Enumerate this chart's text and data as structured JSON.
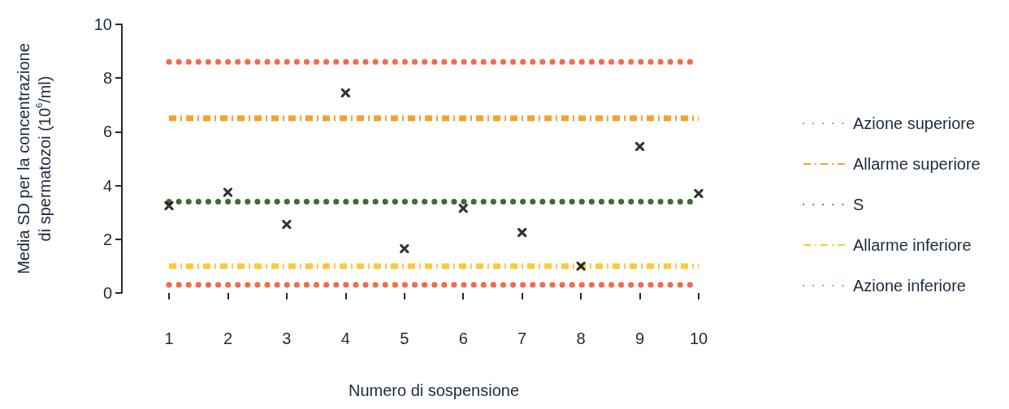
{
  "chart_data": {
    "type": "scatter",
    "xlabel": "Numero di sospensione",
    "ylabel": "Media SD per la concentrazione\ndi spermatozoi (10$^{6}$/ml)",
    "xlim": [
      1,
      10
    ],
    "xticks": [
      1,
      2,
      3,
      4,
      5,
      6,
      7,
      8,
      9,
      10
    ],
    "ylim": [
      0,
      10
    ],
    "yticks": [
      0,
      2,
      4,
      6,
      8,
      10
    ],
    "grid": false,
    "legend": "right",
    "series": [
      {
        "type": "line",
        "name": "Azione superiore",
        "color": "#f26a4f",
        "line_style": "dotted",
        "x": [
          1,
          10
        ],
        "values": [
          8.6,
          8.6
        ]
      },
      {
        "type": "line",
        "name": "Allarme superiore",
        "color": "#f7a030",
        "line_style": "dashed",
        "x": [
          1,
          10
        ],
        "values": [
          6.5,
          6.5
        ]
      },
      {
        "type": "line",
        "name": "S",
        "color": "#3f6b35",
        "line_style": "dotted",
        "x": [
          1,
          10
        ],
        "values": [
          3.4,
          3.4
        ]
      },
      {
        "type": "line",
        "name": "Allarme inferiore",
        "color": "#fdc93a",
        "line_style": "dashed",
        "x": [
          1,
          10
        ],
        "values": [
          1.0,
          1.0
        ]
      },
      {
        "type": "line",
        "name": "Azione inferiore",
        "color": "#f26a4f",
        "line_style": "dotted",
        "x": [
          1,
          10
        ],
        "values": [
          0.3,
          0.3
        ]
      },
      {
        "marker": "cross",
        "color": "#000000",
        "x": [
          1,
          2,
          3,
          4,
          5,
          6,
          7,
          8,
          9,
          10
        ],
        "values": [
          3.25,
          3.75,
          2.55,
          7.45,
          1.65,
          3.15,
          2.25,
          1.0,
          5.45,
          3.7
        ]
      }
    ]
  }
}
